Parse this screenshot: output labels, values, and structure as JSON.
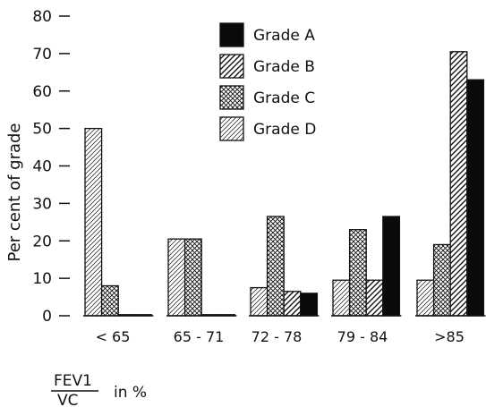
{
  "chart_data": {
    "type": "bar",
    "ylabel": "Per cent of grade",
    "xlabel_fraction_top": "FEV1",
    "xlabel_fraction_bottom": "VC",
    "xlabel_suffix": "in %",
    "ylim": [
      0,
      80
    ],
    "yticks": [
      "0",
      "10",
      "20",
      "30",
      "40",
      "50",
      "60",
      "70",
      "80"
    ],
    "categories": [
      "< 65",
      "65 - 71",
      "72 - 78",
      "79 - 84",
      ">85"
    ],
    "series": [
      {
        "name": "Grade D",
        "values": [
          50,
          20.5,
          7.5,
          9.5,
          9.5
        ]
      },
      {
        "name": "Grade C",
        "values": [
          8,
          20.5,
          26.5,
          23,
          19
        ]
      },
      {
        "name": "Grade B",
        "values": [
          0.3,
          0.3,
          6.5,
          9.5,
          70.5
        ]
      },
      {
        "name": "Grade A",
        "values": [
          0.3,
          0.3,
          6,
          26.5,
          63
        ]
      }
    ],
    "legend": {
      "placement": "top-center",
      "entries": [
        "Grade A",
        "Grade B",
        "Grade C",
        "Grade D"
      ]
    }
  }
}
